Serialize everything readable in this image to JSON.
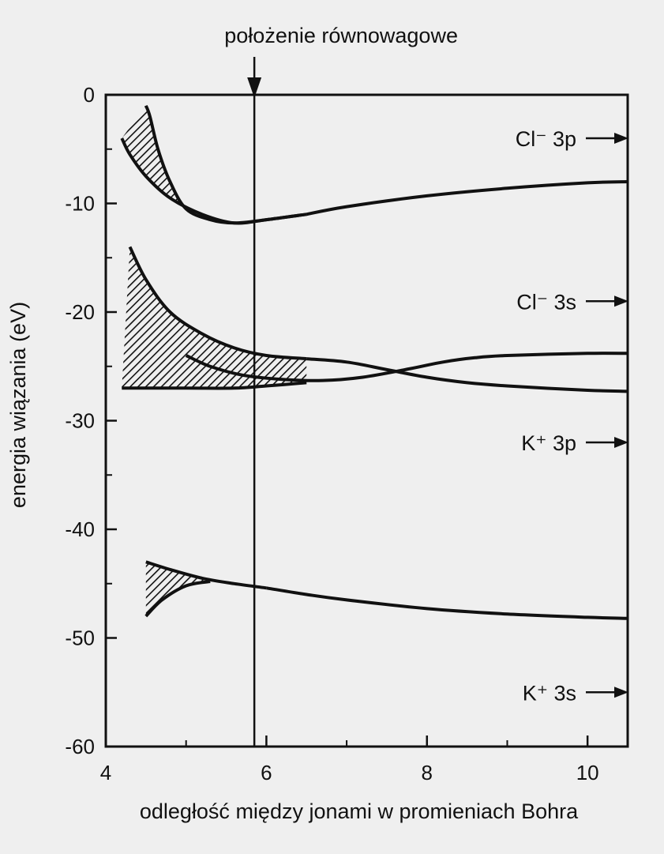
{
  "chart_data": {
    "type": "line",
    "xlabel": "odległość między jonami w promieniach Bohra",
    "ylabel": "energia wiązania (eV)",
    "xlim": [
      4,
      10.5
    ],
    "ylim": [
      -60,
      0
    ],
    "x_ticks": [
      4,
      6,
      8,
      10
    ],
    "y_ticks": [
      0,
      -10,
      -20,
      -30,
      -40,
      -50,
      -60
    ],
    "x_tick_labels": [
      "4",
      "6",
      "8",
      "10"
    ],
    "y_tick_labels": [
      "0",
      "-10",
      "-20",
      "-30",
      "-40",
      "-50",
      "-60"
    ],
    "grid": false,
    "legend": "none",
    "annotation": {
      "text": "położenie równowagowe",
      "x": 5.85
    },
    "levels": [
      {
        "label": "Cl⁻ 3p",
        "y": -4
      },
      {
        "label": "Cl⁻ 3s",
        "y": -19
      },
      {
        "label": "K⁺ 3p",
        "y": -32
      },
      {
        "label": "K⁺ 3s",
        "y": -55
      }
    ],
    "bands": [
      {
        "level": "Cl⁻ 3p",
        "upper": {
          "x": [
            4.5,
            4.55,
            4.65,
            4.8,
            5.0,
            5.3,
            5.6,
            6.0,
            6.5
          ],
          "y": [
            -1,
            -2,
            -5,
            -8,
            -10.5,
            -11.5,
            -11.8,
            -11.5,
            -11
          ]
        },
        "lower": {
          "x": [
            4.2,
            4.3,
            4.5,
            4.8,
            5.2,
            5.6,
            6.0,
            6.5
          ],
          "y": [
            -4,
            -5.5,
            -7.5,
            -9.5,
            -11,
            -11.8,
            -11.5,
            -11
          ]
        },
        "tail": {
          "x": [
            6.5,
            7.0,
            8.0,
            9.0,
            10.0,
            10.5
          ],
          "y": [
            -11,
            -10.3,
            -9.3,
            -8.6,
            -8.1,
            -8.0
          ]
        },
        "hatched": true
      },
      {
        "level": "Cl⁻ 3s",
        "upper": {
          "x": [
            4.3,
            4.5,
            4.8,
            5.2,
            5.6,
            6.0,
            6.5
          ],
          "y": [
            -14,
            -17,
            -20,
            -22,
            -23.3,
            -24,
            -24.3
          ]
        },
        "upper_tail": {
          "x": [
            6.5,
            7.0,
            7.5,
            8.0,
            8.5,
            9.0,
            10.0,
            10.5
          ],
          "y": [
            -24.3,
            -24.6,
            -25.3,
            -26.0,
            -26.5,
            -26.8,
            -27.2,
            -27.3
          ]
        },
        "middle": {
          "x": [
            5.0,
            5.3,
            5.7,
            6.2,
            6.7,
            7.2,
            7.8,
            8.2,
            8.6,
            9.0,
            10.0,
            10.5
          ],
          "y": [
            -24.0,
            -25.0,
            -25.8,
            -26.2,
            -26.3,
            -26.0,
            -25.2,
            -24.6,
            -24.2,
            -24.0,
            -23.8,
            -23.8
          ]
        },
        "lower": {
          "x": [
            4.2,
            5.0,
            5.6,
            6.0,
            6.5
          ],
          "y": [
            -27,
            -27,
            -27,
            -26.8,
            -26.5
          ]
        },
        "hatched": true
      },
      {
        "level": "K⁺ 3s",
        "upper": {
          "x": [
            4.5,
            4.8,
            5.2,
            5.6,
            6.0
          ],
          "y": [
            -43,
            -43.7,
            -44.5,
            -45.0,
            -45.4
          ]
        },
        "lower": {
          "x": [
            4.5,
            4.7,
            5.0,
            5.3
          ],
          "y": [
            -48,
            -46.5,
            -45.2,
            -44.8
          ]
        },
        "tail": {
          "x": [
            6.0,
            6.5,
            7.0,
            8.0,
            9.0,
            10.0,
            10.5
          ],
          "y": [
            -45.4,
            -46.0,
            -46.5,
            -47.3,
            -47.8,
            -48.1,
            -48.2
          ]
        },
        "hatched": true
      }
    ]
  }
}
